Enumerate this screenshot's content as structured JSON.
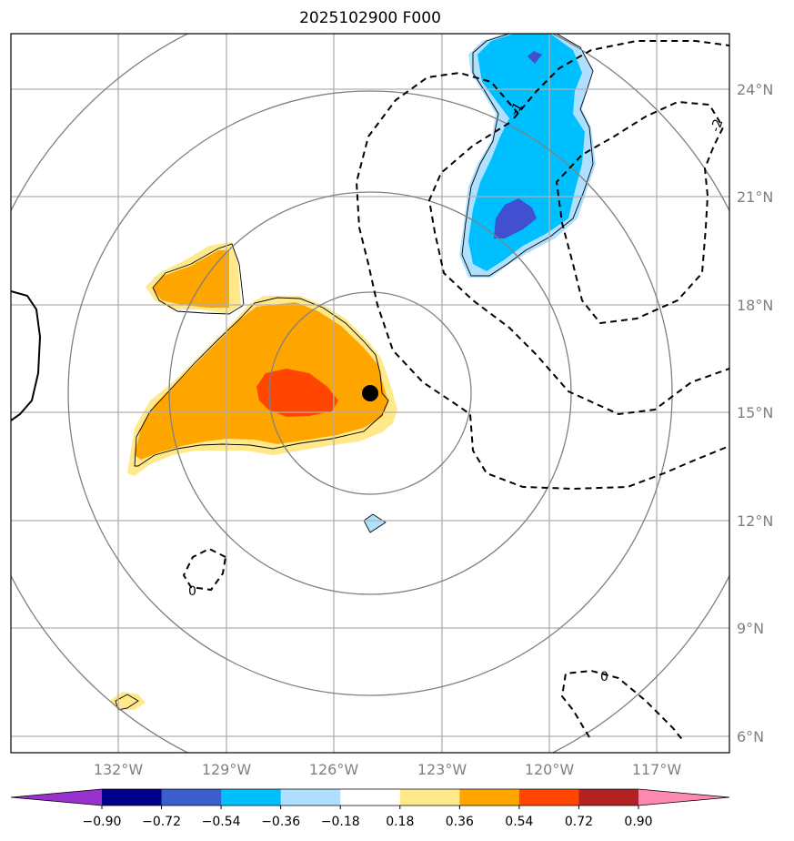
{
  "title": "2025102900 F000",
  "colors": {
    "orange": "#ffa500",
    "light_yellow": "#ffe98a",
    "red_orange": "#ff4500",
    "deep_sky_blue": "#00bfff",
    "light_blue": "#b0e0ff",
    "royal_blue": "#4050d0",
    "grid": "#b0b0b0",
    "ring": "#808080",
    "axis_label": "#808080"
  },
  "map": {
    "lon_ticks": [
      "132°W",
      "129°W",
      "126°W",
      "123°W",
      "120°W",
      "117°W"
    ],
    "lat_ticks": [
      "24°N",
      "21°N",
      "18°N",
      "15°N",
      "12°N",
      "9°N",
      "6°N"
    ],
    "center_marker": "storm-center-dot",
    "contour_labels": [
      "-1",
      "-2",
      "0",
      "0"
    ]
  },
  "colorbar": {
    "ticks": [
      "−0.90",
      "−0.72",
      "−0.54",
      "−0.36",
      "−0.18",
      "0.18",
      "0.36",
      "0.54",
      "0.72",
      "0.90"
    ],
    "colors": [
      "#9932cc",
      "#00008b",
      "#3a5fcd",
      "#00bfff",
      "#b0e0ff",
      "#ffffff",
      "#ffe98a",
      "#ffa500",
      "#ff4500",
      "#b22222",
      "#ff88b0"
    ]
  }
}
